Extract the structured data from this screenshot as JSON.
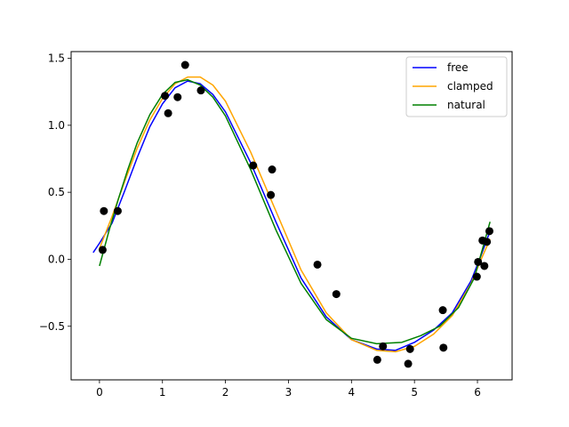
{
  "chart_data": {
    "type": "scatter",
    "title": "",
    "xlabel": "",
    "ylabel": "",
    "xlim": [
      -0.45,
      6.55
    ],
    "ylim": [
      -0.9,
      1.55
    ],
    "xticks": [
      0,
      1,
      2,
      3,
      4,
      5,
      6
    ],
    "yticks": [
      -0.5,
      0.0,
      0.5,
      1.0,
      1.5
    ],
    "xtick_labels": [
      "0",
      "1",
      "2",
      "3",
      "4",
      "5",
      "6"
    ],
    "ytick_labels": [
      "−0.5",
      "0.0",
      "0.5",
      "1.0",
      "1.5"
    ],
    "grid": false,
    "legend_position": "top-right",
    "points": {
      "color": "#000000",
      "x": [
        0.05,
        0.07,
        0.29,
        1.04,
        1.09,
        1.24,
        1.36,
        1.61,
        2.44,
        2.72,
        2.74,
        3.46,
        3.76,
        4.41,
        4.5,
        4.9,
        4.93,
        5.45,
        5.46,
        5.99,
        6.01,
        6.08,
        6.11,
        6.15,
        6.19
      ],
      "y": [
        0.07,
        0.36,
        0.36,
        1.22,
        1.09,
        1.21,
        1.45,
        1.26,
        0.7,
        0.48,
        0.67,
        -0.04,
        -0.26,
        -0.75,
        -0.65,
        -0.78,
        -0.67,
        -0.38,
        -0.66,
        -0.13,
        -0.02,
        0.14,
        -0.05,
        0.13,
        0.21
      ]
    },
    "series": [
      {
        "name": "free",
        "color": "#0000ff",
        "x": [
          -0.1,
          0.0,
          0.2,
          0.4,
          0.6,
          0.8,
          1.0,
          1.2,
          1.4,
          1.6,
          1.8,
          2.0,
          2.4,
          2.8,
          3.2,
          3.6,
          4.0,
          4.4,
          4.7,
          5.0,
          5.3,
          5.6,
          5.9,
          6.05,
          6.2
        ],
        "y": [
          0.05,
          0.12,
          0.27,
          0.51,
          0.76,
          0.99,
          1.16,
          1.28,
          1.33,
          1.31,
          1.23,
          1.1,
          0.72,
          0.28,
          -0.14,
          -0.43,
          -0.6,
          -0.67,
          -0.68,
          -0.62,
          -0.53,
          -0.4,
          -0.16,
          0.02,
          0.21
        ]
      },
      {
        "name": "clamped",
        "color": "#ffa500",
        "x": [
          0.0,
          0.2,
          0.4,
          0.6,
          0.8,
          1.0,
          1.2,
          1.4,
          1.6,
          1.8,
          2.0,
          2.4,
          2.8,
          3.2,
          3.6,
          4.0,
          4.4,
          4.7,
          5.0,
          5.3,
          5.6,
          5.9,
          6.05,
          6.2
        ],
        "y": [
          0.08,
          0.32,
          0.58,
          0.83,
          1.04,
          1.2,
          1.31,
          1.36,
          1.36,
          1.3,
          1.18,
          0.8,
          0.36,
          -0.08,
          -0.4,
          -0.6,
          -0.68,
          -0.69,
          -0.65,
          -0.56,
          -0.42,
          -0.18,
          -0.01,
          0.15
        ]
      },
      {
        "name": "natural",
        "color": "#008000",
        "x": [
          0.0,
          0.15,
          0.3,
          0.45,
          0.6,
          0.8,
          1.0,
          1.2,
          1.4,
          1.6,
          1.8,
          2.0,
          2.4,
          2.8,
          3.2,
          3.6,
          4.0,
          4.4,
          4.8,
          5.1,
          5.4,
          5.7,
          5.95,
          6.1,
          6.2
        ],
        "y": [
          -0.05,
          0.21,
          0.45,
          0.67,
          0.87,
          1.08,
          1.23,
          1.32,
          1.34,
          1.3,
          1.21,
          1.07,
          0.67,
          0.22,
          -0.18,
          -0.45,
          -0.59,
          -0.63,
          -0.62,
          -0.57,
          -0.5,
          -0.36,
          -0.14,
          0.11,
          0.28
        ]
      }
    ]
  }
}
